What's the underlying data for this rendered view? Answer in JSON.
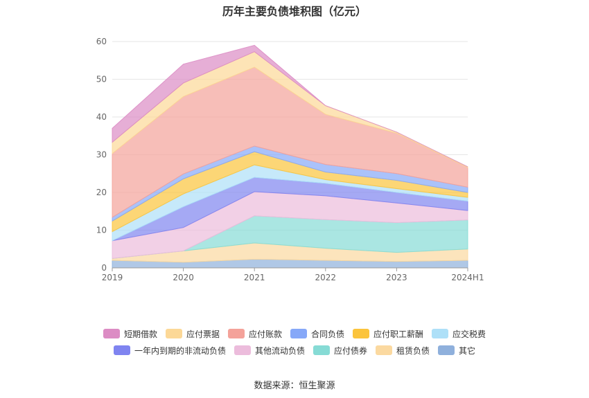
{
  "chart_data": {
    "type": "area",
    "title": "历年主要负债堆积图（亿元）",
    "categories": [
      "2019",
      "2020",
      "2021",
      "2022",
      "2023",
      "2024H1"
    ],
    "ylim": [
      0,
      60
    ],
    "yticks": [
      "0",
      "10",
      "20",
      "30",
      "40",
      "50",
      "60"
    ],
    "grid": true,
    "legend_position": "bottom",
    "series": [
      {
        "name": "其它",
        "color": "#8fb0dc",
        "values": [
          2.0,
          1.5,
          2.3,
          2.0,
          1.7,
          2.0
        ]
      },
      {
        "name": "租赁负债",
        "color": "#fbd9a0",
        "values": [
          0.5,
          3.0,
          4.3,
          3.2,
          2.4,
          3.0
        ]
      },
      {
        "name": "应付债券",
        "color": "#86dbd5",
        "values": [
          0.0,
          0.0,
          7.2,
          7.6,
          7.9,
          7.7
        ]
      },
      {
        "name": "其他流动负债",
        "color": "#ecbcdc",
        "values": [
          4.7,
          6.2,
          6.4,
          6.3,
          5.2,
          2.5
        ]
      },
      {
        "name": "一年内到期的非流动负债",
        "color": "#7f84f0",
        "values": [
          0.0,
          5.5,
          3.8,
          3.3,
          2.8,
          2.5
        ]
      },
      {
        "name": "应交税费",
        "color": "#aee0f8",
        "values": [
          2.4,
          3.4,
          3.3,
          1.0,
          1.0,
          1.0
        ]
      },
      {
        "name": "应付职工薪酬",
        "color": "#fbc43c",
        "values": [
          2.8,
          4.0,
          3.5,
          2.0,
          2.2,
          1.3
        ]
      },
      {
        "name": "合同负债",
        "color": "#86a8f8",
        "values": [
          1.0,
          1.3,
          1.5,
          2.0,
          1.8,
          1.4
        ]
      },
      {
        "name": "应付账款",
        "color": "#f4a29a",
        "values": [
          16.9,
          20.5,
          20.9,
          13.3,
          10.7,
          5.2
        ]
      },
      {
        "name": "应付票据",
        "color": "#fcd897",
        "values": [
          3.0,
          3.6,
          4.1,
          2.3,
          0.3,
          0.2
        ]
      },
      {
        "name": "短期借款",
        "color": "#dc8cc4",
        "values": [
          3.7,
          5.0,
          1.7,
          0.0,
          0.0,
          0.0
        ]
      }
    ],
    "legend_rows": [
      [
        "短期借款",
        "应付票据",
        "应付账款",
        "合同负债",
        "应付职工薪酬",
        "应交税费"
      ],
      [
        "一年内到期的非流动负债",
        "其他流动负债",
        "应付债券",
        "租赁负债",
        "其它"
      ]
    ]
  },
  "source_text": "数据来源：恒生聚源"
}
